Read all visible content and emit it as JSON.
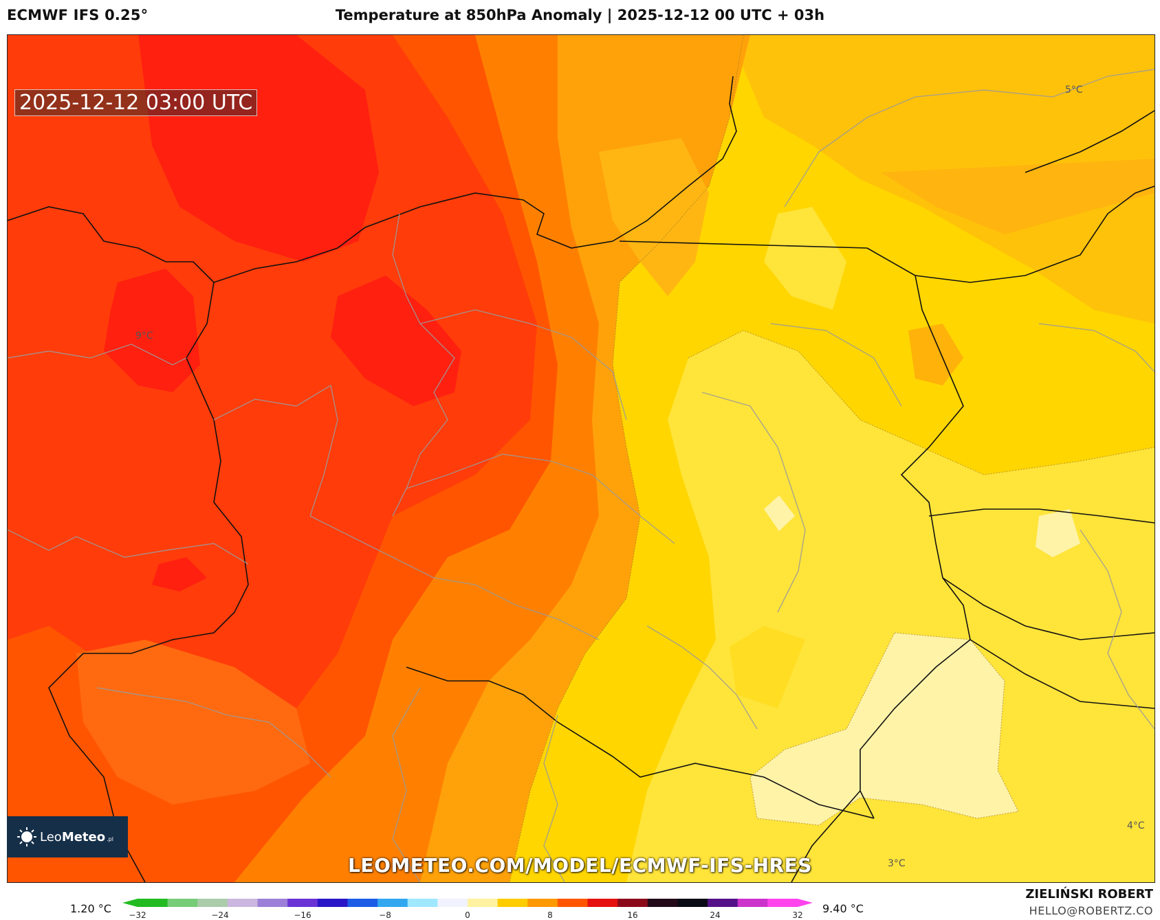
{
  "header": {
    "model": "ECMWF IFS 0.25°",
    "title": "Temperature at 850hPa Anomaly | 2025-12-12 00 UTC + 03h"
  },
  "map": {
    "timestamp": "2025-12-12 03:00 UTC",
    "watermark": "LEOMETEO.COM/MODEL/ECMWF-IFS-HRES",
    "contour_labels": [
      "9°C",
      "5°C",
      "4°C",
      "3°C"
    ]
  },
  "logo": {
    "name_light": "Leo",
    "name_bold": "Meteo",
    "suffix": ".pl"
  },
  "legend": {
    "min_label": "1.20 °C",
    "max_label": "9.40 °C",
    "ticks": [
      "−32",
      "−24",
      "−16",
      "−8",
      "0",
      "8",
      "16",
      "24",
      "32"
    ],
    "tick_values": [
      -32,
      -24,
      -16,
      -8,
      0,
      8,
      16,
      24,
      32
    ],
    "range": [
      -32,
      32
    ],
    "colors": [
      "#22bb22",
      "#77cc77",
      "#aaccaa",
      "#cbb6e0",
      "#9c7fd8",
      "#6a33d6",
      "#2a16c8",
      "#1d5ce6",
      "#33a8f0",
      "#9fe8ff",
      "#f2f2ff",
      "#fff2a0",
      "#ffcc00",
      "#ff9900",
      "#ff5500",
      "#e61010",
      "#8a0a1a",
      "#220a18",
      "#0a0a14",
      "#551188",
      "#cc33cc",
      "#ff44ee"
    ]
  },
  "credits": {
    "author": "ZIELIŃSKI ROBERT",
    "email": "HELLO@ROBERTZ.CO"
  }
}
